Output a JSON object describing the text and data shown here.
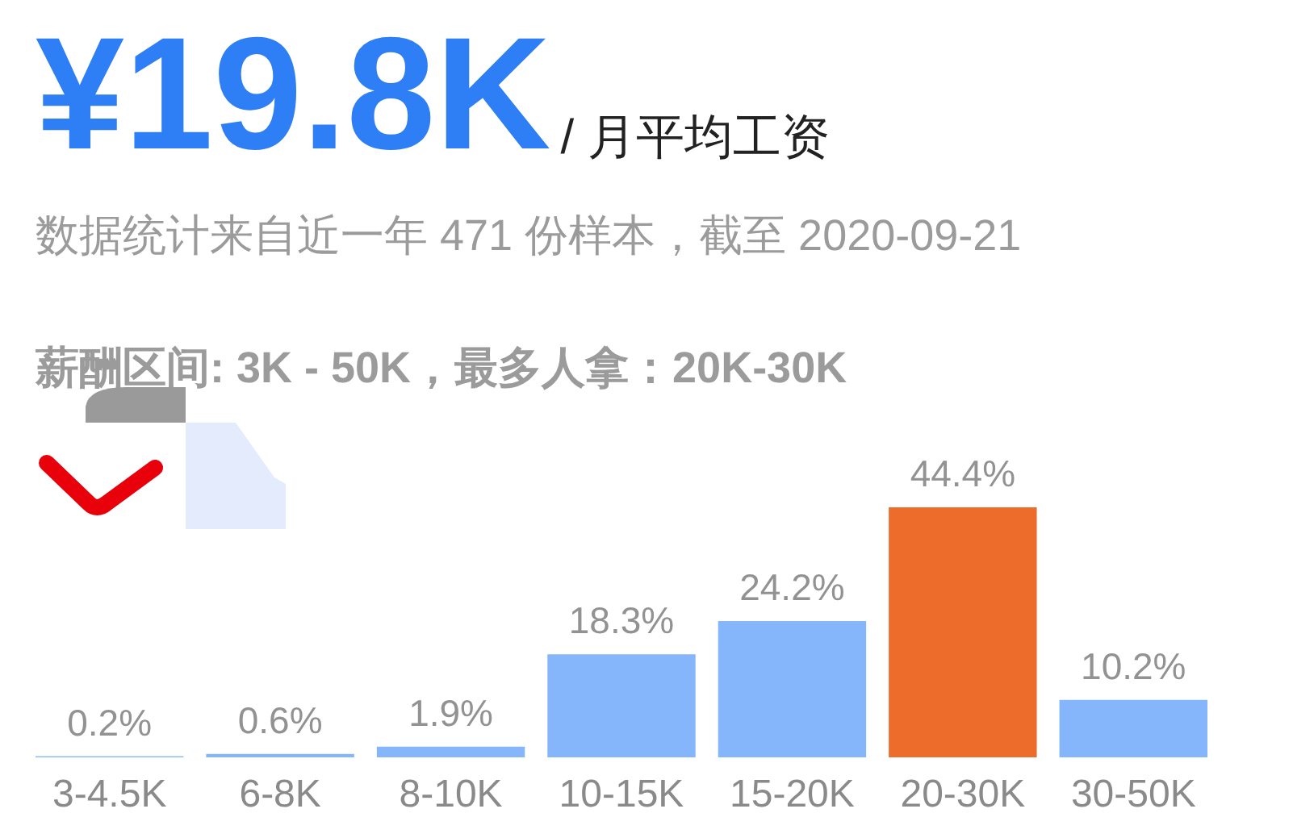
{
  "chart_data": {
    "type": "bar",
    "title": "¥19.8K",
    "subtitle": "/ 月平均工资",
    "annotations": [
      "数据统计来自近一年 471 份样本，截至 2020-09-21",
      "薪酬区间: 3K - 50K，最多人拿：20K-30K"
    ],
    "categories": [
      "3-4.5K",
      "6-8K",
      "8-10K",
      "10-15K",
      "15-20K",
      "20-30K",
      "30-50K"
    ],
    "values": [
      0.2,
      0.6,
      1.9,
      18.3,
      24.2,
      44.4,
      10.2
    ],
    "colors": [
      "#85b6fb",
      "#85b6fb",
      "#85b6fb",
      "#85b6fb",
      "#85b6fb",
      "#ee6c2b",
      "#85b6fb"
    ],
    "value_labels": [
      "0.2%",
      "0.6%",
      "1.9%",
      "18.3%",
      "24.2%",
      "44.4%",
      "10.2%"
    ]
  }
}
